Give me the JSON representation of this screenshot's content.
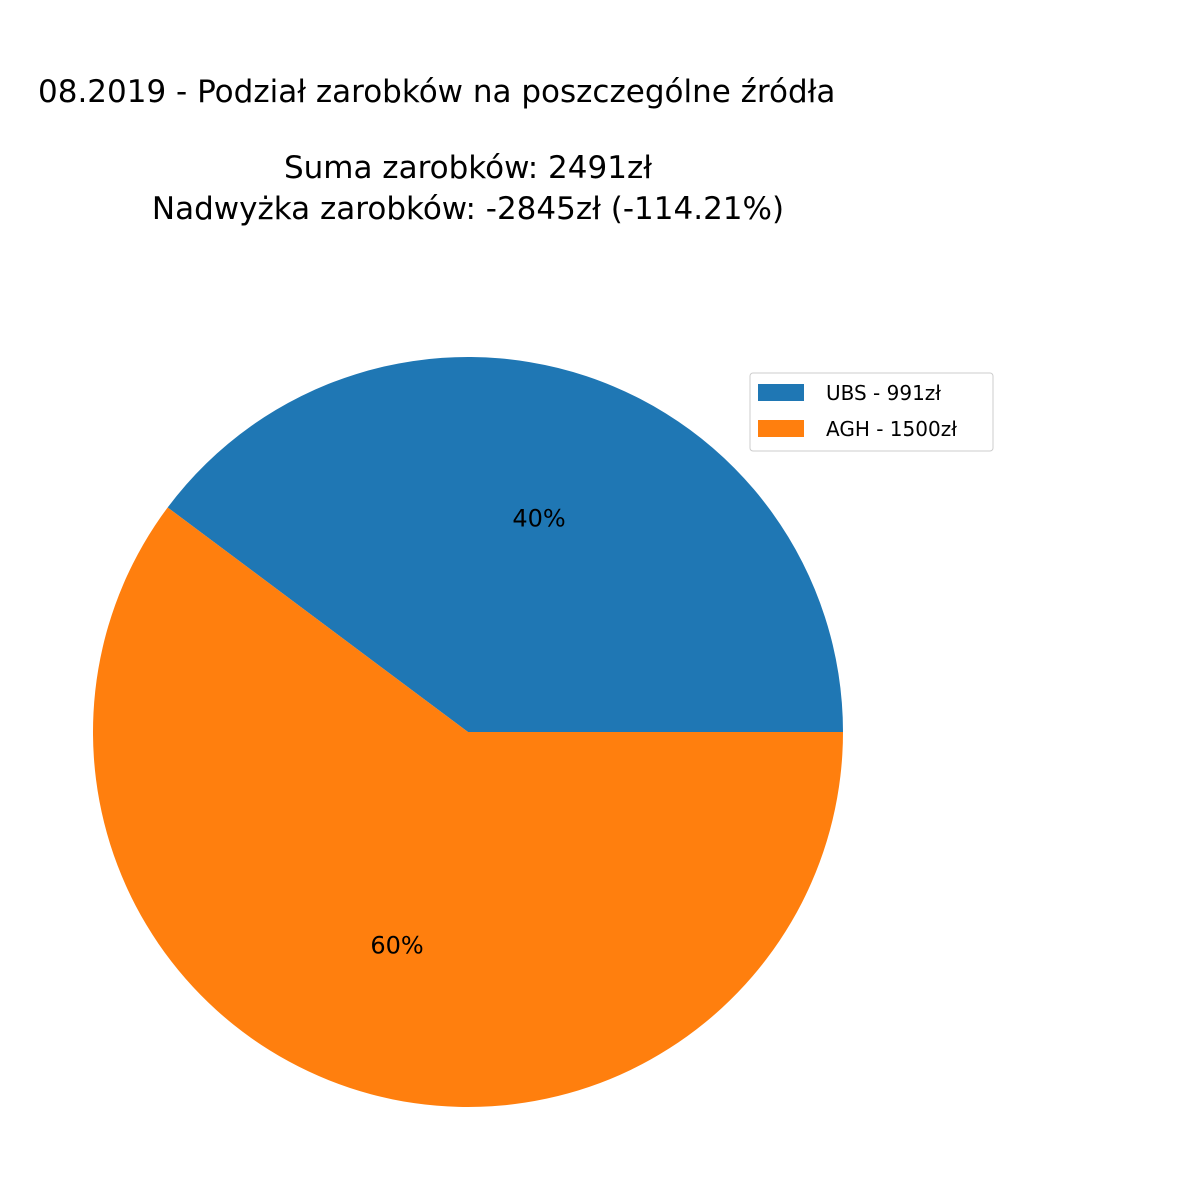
{
  "chart_data": {
    "type": "pie",
    "title": "08.2019 - Podział zarobków na poszczególne źródła",
    "subtitle_lines": [
      "Suma zarobków: 2491zł",
      "Nadwyżka zarobków: -2845zł (-114.21%)"
    ],
    "slices": [
      {
        "label": "UBS - 991zł",
        "value": 991,
        "percent_label": "40%",
        "color": "#1f77b4"
      },
      {
        "label": "AGH - 1500zł",
        "value": 1500,
        "percent_label": "60%",
        "color": "#ff7f0e"
      }
    ],
    "start_angle_deg": 0,
    "direction": "counterclockwise",
    "legend_placement": "upper-right"
  }
}
